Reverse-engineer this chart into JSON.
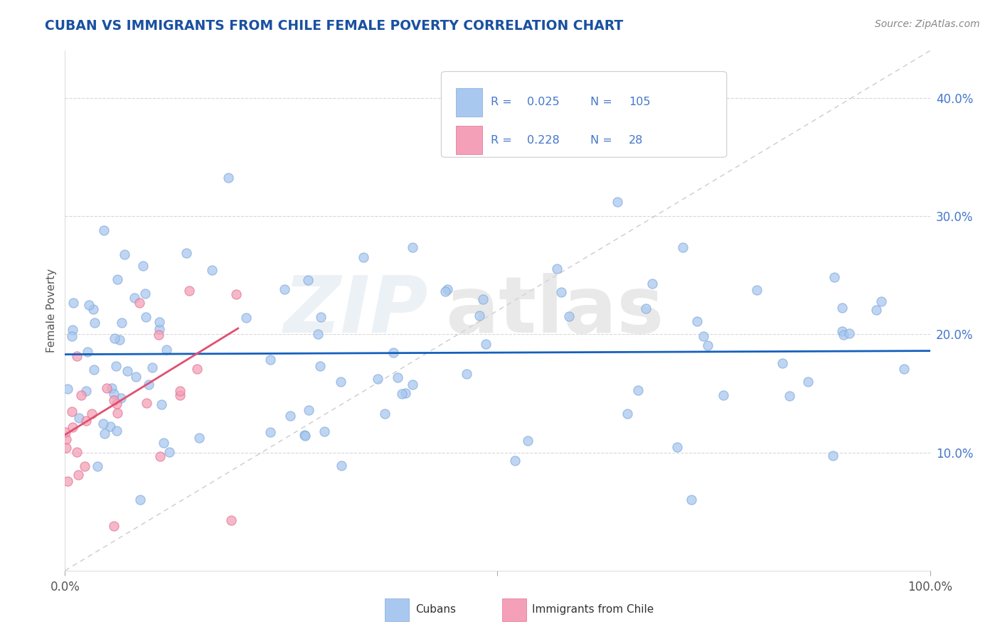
{
  "title": "CUBAN VS IMMIGRANTS FROM CHILE FEMALE POVERTY CORRELATION CHART",
  "source_text": "Source: ZipAtlas.com",
  "ylabel": "Female Poverty",
  "xlim": [
    0,
    1
  ],
  "ylim": [
    0,
    0.44
  ],
  "yticks": [
    0.1,
    0.2,
    0.3,
    0.4
  ],
  "ytick_labels": [
    "10.0%",
    "20.0%",
    "30.0%",
    "40.0%"
  ],
  "legend_R1": "0.025",
  "legend_N1": "105",
  "legend_R2": "0.228",
  "legend_N2": "28",
  "color_cuban": "#a8c8f0",
  "color_cuban_edge": "#80a8d8",
  "color_chile": "#f4a0b8",
  "color_chile_edge": "#e07090",
  "color_line_cuban": "#1560bd",
  "color_line_chile": "#e05070",
  "color_ref_line": "#c0c0c0",
  "color_grid": "#d8d8d8",
  "background_color": "#ffffff",
  "title_color": "#1a50a0",
  "source_color": "#888888",
  "tick_color": "#4477cc",
  "ylabel_color": "#555555",
  "cuban_trend_y0": 0.183,
  "cuban_trend_slope": 0.003,
  "chile_trend_y0": 0.115,
  "chile_trend_slope": 0.45,
  "chile_trend_xmax": 0.2
}
